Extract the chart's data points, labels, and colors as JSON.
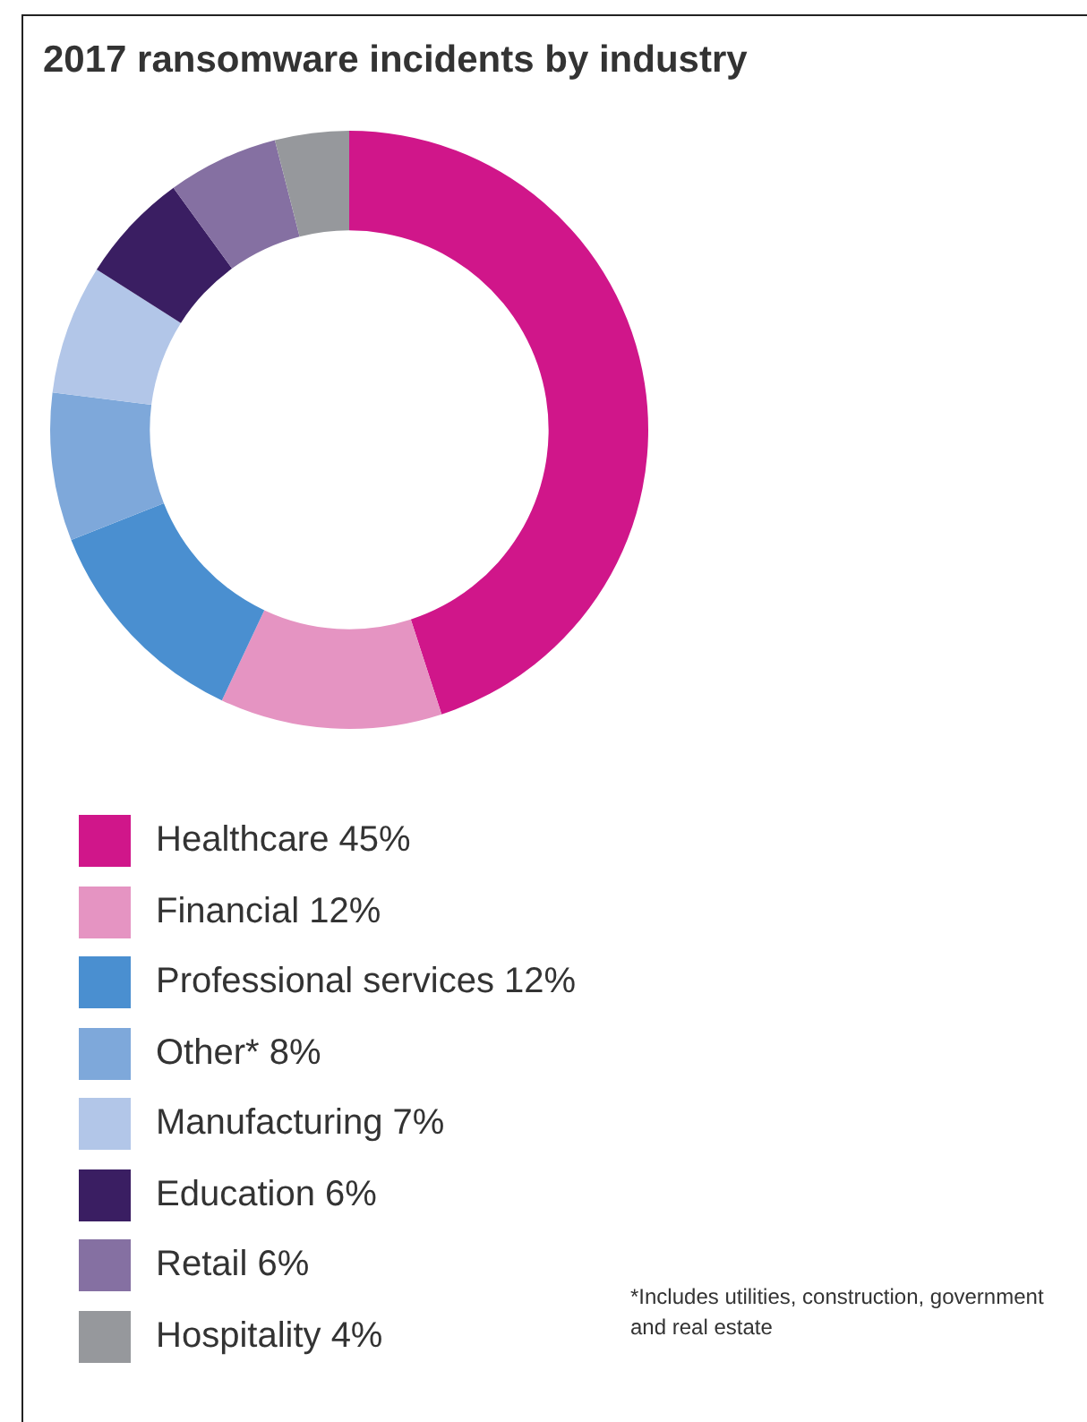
{
  "chart_data": {
    "type": "donut",
    "title": "2017 ransomware incidents by industry",
    "categories": [
      "Healthcare",
      "Financial",
      "Professional services",
      "Other*",
      "Manufacturing",
      "Education",
      "Retail",
      "Hospitality"
    ],
    "values": [
      45,
      12,
      12,
      8,
      7,
      6,
      6,
      4
    ],
    "value_labels": [
      "45%",
      "12%",
      "12%",
      "8%",
      "7%",
      "6%",
      "6%",
      "4%"
    ],
    "colors": [
      "#d0168a",
      "#e594c2",
      "#4a8fd0",
      "#7ea8da",
      "#b2c6e8",
      "#3a1e62",
      "#8570a2",
      "#96989c"
    ],
    "legend": "bottom",
    "annotations": [
      "*Includes utilities, construction, government and real estate"
    ]
  }
}
